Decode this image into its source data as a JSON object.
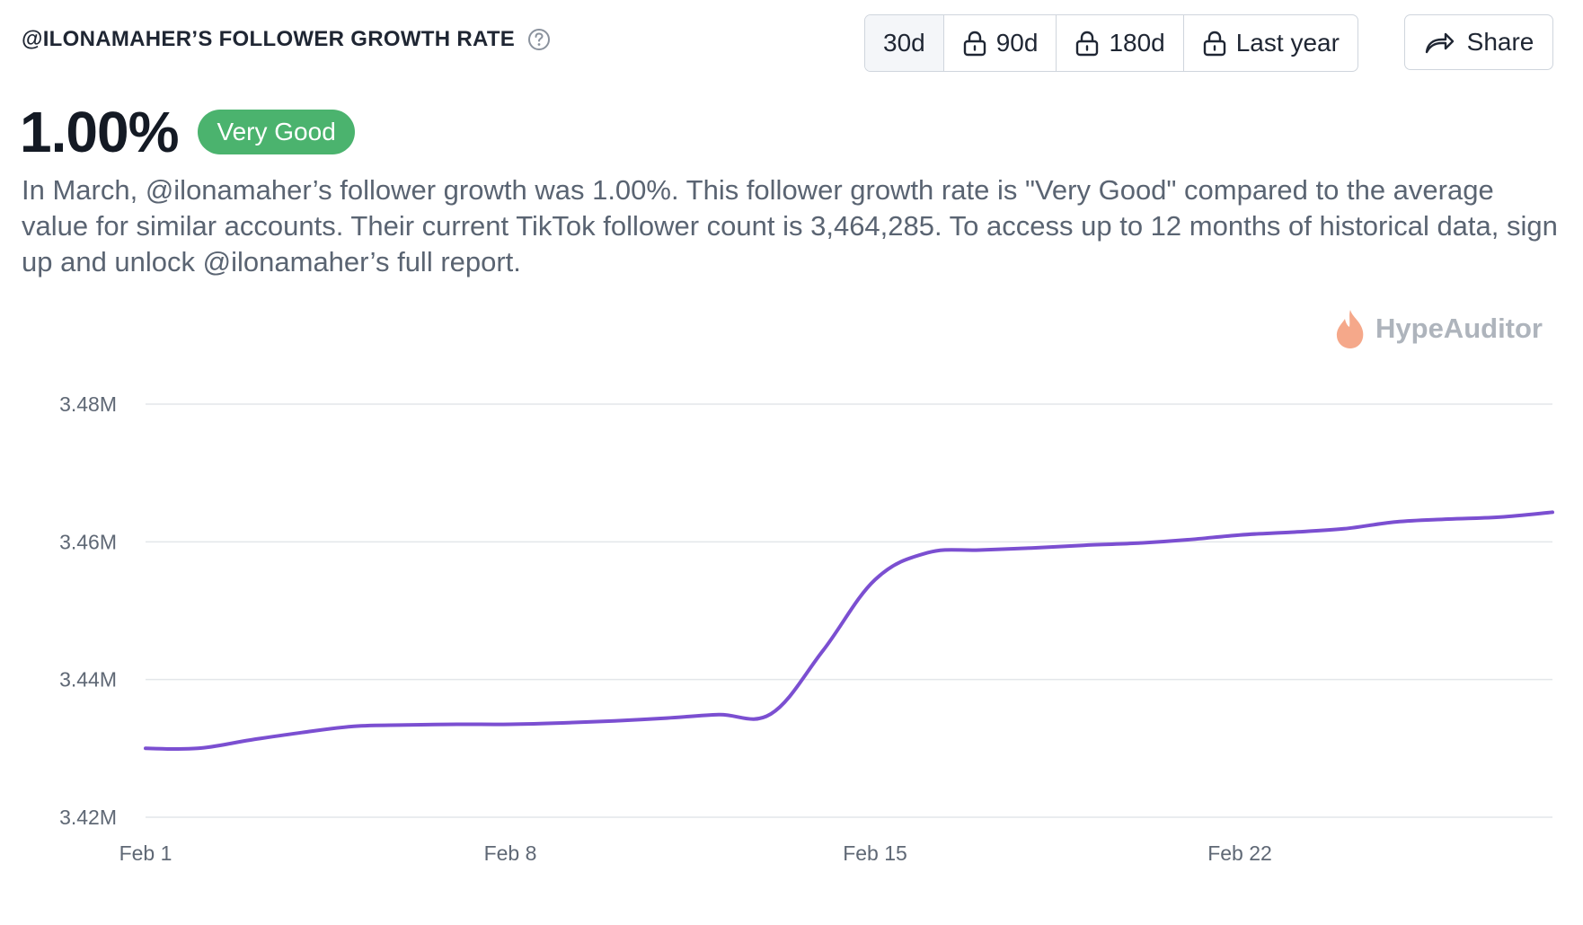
{
  "header": {
    "title": "@ILONAMAHER’S FOLLOWER GROWTH RATE",
    "help_icon": "question-circle-icon"
  },
  "period_tabs": [
    {
      "label": "30d",
      "locked": false,
      "active": true
    },
    {
      "label": "90d",
      "locked": true,
      "active": false
    },
    {
      "label": "180d",
      "locked": true,
      "active": false
    },
    {
      "label": "Last year",
      "locked": true,
      "active": false
    }
  ],
  "share": {
    "label": "Share",
    "icon": "share-arrow-icon"
  },
  "metric": {
    "value": "1.00%",
    "badge": "Very Good",
    "badge_color": "#4bb36e"
  },
  "description": "In March, @ilonamaher’s follower growth was 1.00%. This follower growth rate is \"Very Good\" compared to the average value for similar accounts. Their current TikTok follower count is 3,464,285. To access up to 12 months of historical data, sign up and unlock @ilonamaher’s full report.",
  "brand": {
    "name": "HypeAuditor",
    "icon": "flame-icon",
    "icon_color": "#f5a88a"
  },
  "chart_data": {
    "type": "line",
    "ylim": [
      3.42,
      3.48
    ],
    "y_ticks": [
      {
        "value": 3.48,
        "label": "3.48M"
      },
      {
        "value": 3.46,
        "label": "3.46M"
      },
      {
        "value": 3.44,
        "label": "3.44M"
      },
      {
        "value": 3.42,
        "label": "3.42M"
      }
    ],
    "xlim": [
      1,
      28
    ],
    "x_ticks": [
      {
        "value": 1,
        "label": "Feb 1"
      },
      {
        "value": 8,
        "label": "Feb 8"
      },
      {
        "value": 15,
        "label": "Feb 15"
      },
      {
        "value": 22,
        "label": "Feb 22"
      }
    ],
    "grid": true,
    "line_color": "#7b4fd1",
    "series": [
      {
        "x": [
          1,
          2,
          3,
          4,
          5,
          6,
          7,
          8,
          9,
          10,
          11,
          12,
          13,
          14,
          15,
          16,
          17,
          18,
          19,
          20,
          21,
          22,
          23,
          24,
          25,
          26,
          27,
          28
        ],
        "values": [
          3.43,
          3.43,
          3.4312,
          3.4323,
          3.4332,
          3.4334,
          3.4335,
          3.4335,
          3.4337,
          3.434,
          3.4344,
          3.4349,
          3.435,
          3.4442,
          3.4545,
          3.4584,
          3.4588,
          3.4591,
          3.4595,
          3.4598,
          3.4603,
          3.461,
          3.4614,
          3.4619,
          3.4629,
          3.4633,
          3.4636,
          3.4643
        ]
      }
    ]
  }
}
